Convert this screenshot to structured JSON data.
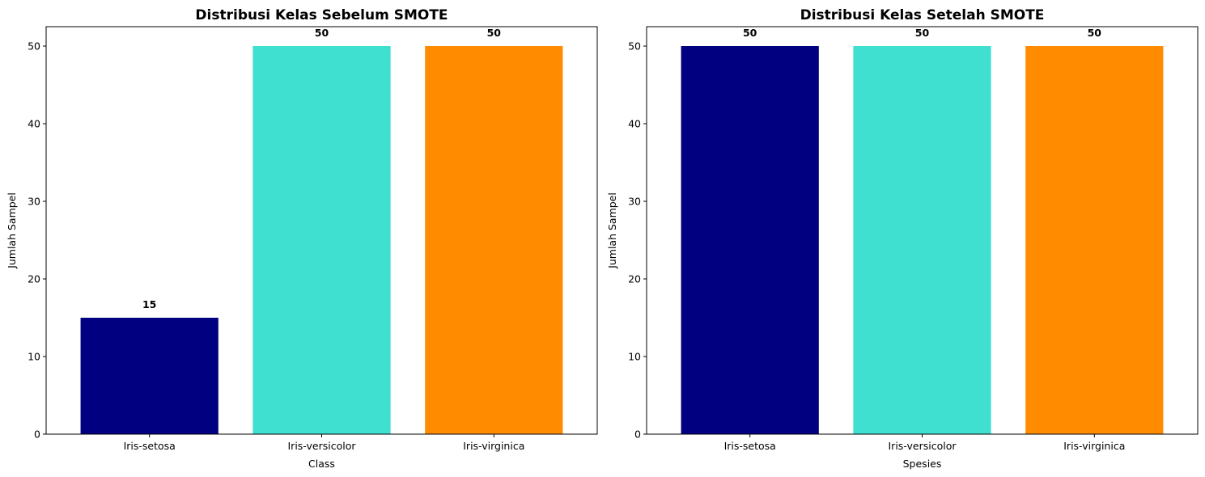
{
  "chart_data": [
    {
      "type": "bar",
      "title": "Distribusi Kelas Sebelum SMOTE",
      "xlabel": "Class",
      "ylabel": "Jumlah Sampel",
      "categories": [
        "Iris-setosa",
        "Iris-versicolor",
        "Iris-virginica"
      ],
      "values": [
        15,
        50,
        50
      ],
      "data_labels": [
        "15",
        "50",
        "50"
      ],
      "colors": [
        "#000080",
        "#40E0D0",
        "#FF8C00"
      ],
      "ylim": [
        0,
        52.5
      ],
      "yticks": [
        0,
        10,
        20,
        30,
        40,
        50
      ],
      "ytick_labels": [
        "0",
        "10",
        "20",
        "30",
        "40",
        "50"
      ],
      "grid": false,
      "legend": "none"
    },
    {
      "type": "bar",
      "title": "Distribusi Kelas Setelah SMOTE",
      "xlabel": "Spesies",
      "ylabel": "Jumlah Sampel",
      "categories": [
        "Iris-setosa",
        "Iris-versicolor",
        "Iris-virginica"
      ],
      "values": [
        50,
        50,
        50
      ],
      "data_labels": [
        "50",
        "50",
        "50"
      ],
      "colors": [
        "#000080",
        "#40E0D0",
        "#FF8C00"
      ],
      "ylim": [
        0,
        52.5
      ],
      "yticks": [
        0,
        10,
        20,
        30,
        40,
        50
      ],
      "ytick_labels": [
        "0",
        "10",
        "20",
        "30",
        "40",
        "50"
      ],
      "grid": false,
      "legend": "none"
    }
  ]
}
